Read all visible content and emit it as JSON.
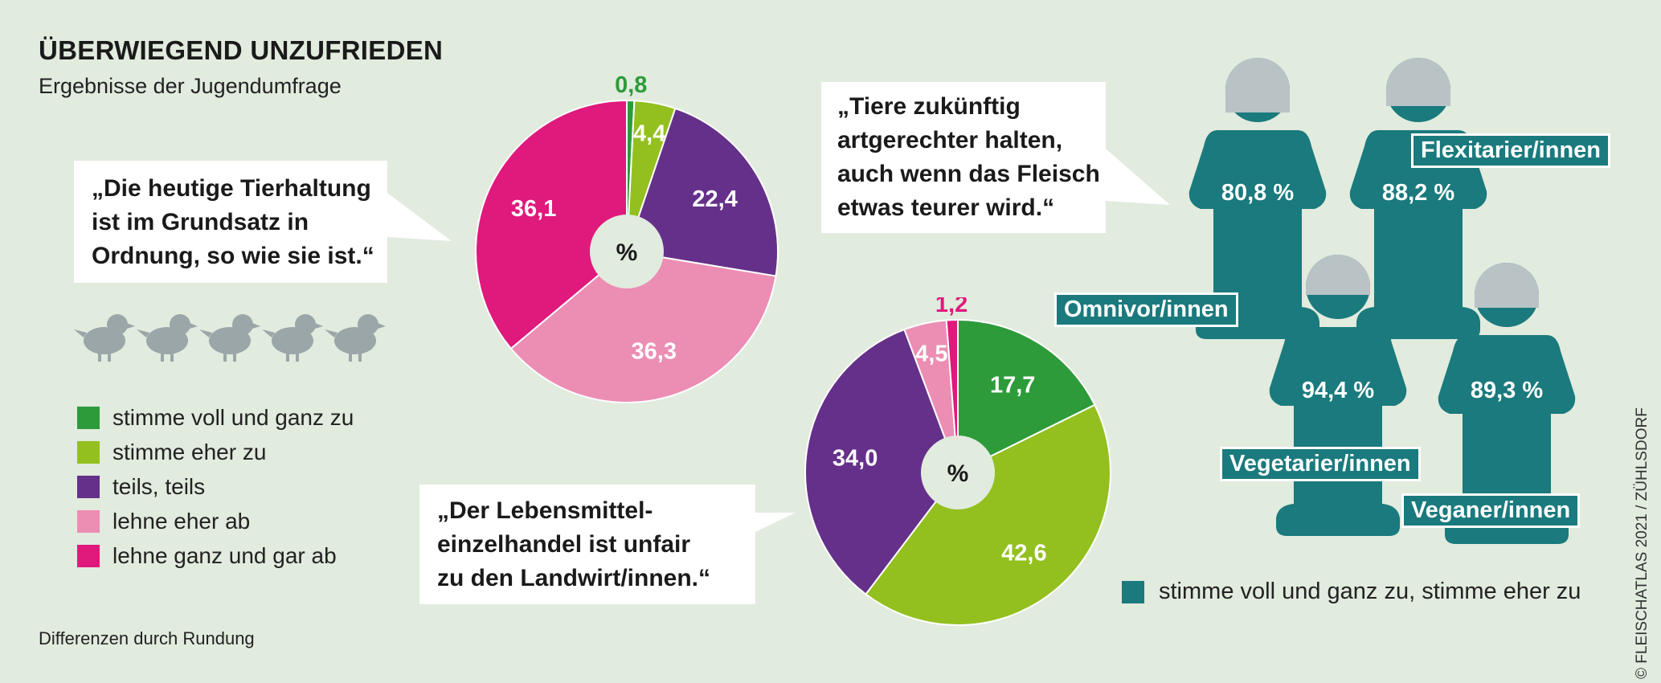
{
  "title": "ÜBERWIEGEND UNZUFRIEDEN",
  "subtitle": "Ergebnisse der Jugendumfrage",
  "footnote": "Differenzen durch Rundung",
  "credit": "© FLEISCHATLAS 2021 / ZÜHLSDORF",
  "legend": [
    {
      "label": "stimme voll und ganz zu",
      "color": "#2d9b3a"
    },
    {
      "label": "stimme eher zu",
      "color": "#93c01f"
    },
    {
      "label": "teils, teils",
      "color": "#65308a"
    },
    {
      "label": "lehne eher ab",
      "color": "#ec8db4"
    },
    {
      "label": "lehne ganz und gar ab",
      "color": "#e0197c"
    }
  ],
  "bubble1": "„Die heutige Tierhaltung\nist im Grundsatz in\nOrdnung, so wie sie ist.“",
  "bubble2": "„Der Lebensmittel-\neinzelhandel ist unfair\nzu den Landwirt/innen.“",
  "bubble3": "„Tiere zukünftig\nartgerechter halten,\nauch wenn das Fleisch\netwas teurer wird.“",
  "chart_data": [
    {
      "type": "pie",
      "center_label": "%",
      "categories": [
        "stimme voll und ganz zu",
        "stimme eher zu",
        "teils, teils",
        "lehne eher ab",
        "lehne ganz und gar ab"
      ],
      "values": [
        0.8,
        4.4,
        22.4,
        36.3,
        36.1
      ],
      "labels": [
        "0,8",
        "4,4",
        "22,4",
        "36,3",
        "36,1"
      ]
    },
    {
      "type": "pie",
      "center_label": "%",
      "categories": [
        "stimme voll und ganz zu",
        "stimme eher zu",
        "teils, teils",
        "lehne eher ab",
        "lehne ganz und gar ab"
      ],
      "values": [
        17.7,
        42.6,
        34.0,
        4.5,
        1.2
      ],
      "labels": [
        "17,7",
        "42,6",
        "34,0",
        "4,5",
        "1,2"
      ]
    },
    {
      "type": "bar",
      "series_label": "stimme voll und ganz zu, stimme eher zu",
      "categories": [
        "Omnivor/innen",
        "Flexitarier/innen",
        "Vegetarier/innen",
        "Veganer/innen"
      ],
      "values": [
        80.8,
        88.2,
        94.4,
        89.3
      ],
      "labels": [
        "80,8 %",
        "88,2 %",
        "94,4 %",
        "89,3 %"
      ],
      "color": "#1a7a7d"
    }
  ]
}
